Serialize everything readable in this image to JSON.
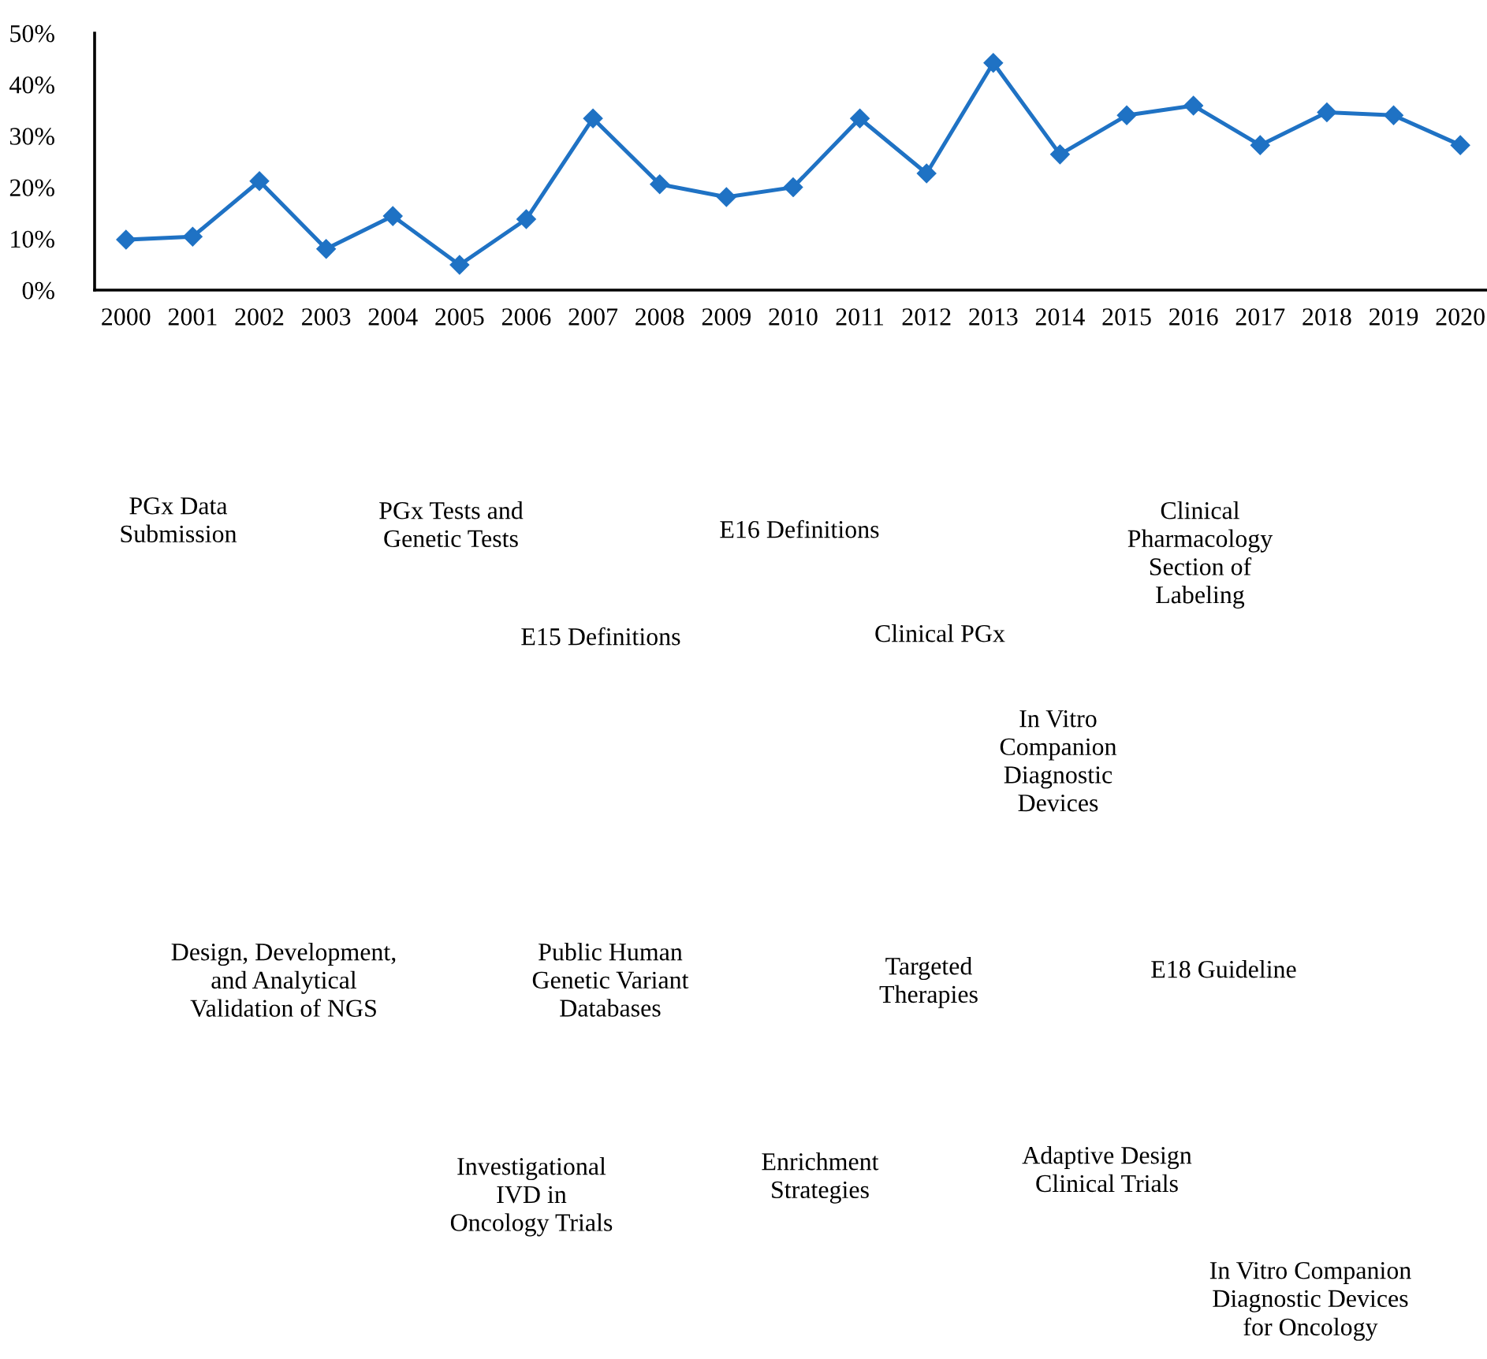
{
  "chart_data": {
    "type": "line",
    "categories": [
      "2000",
      "2001",
      "2002",
      "2003",
      "2004",
      "2005",
      "2006",
      "2007",
      "2008",
      "2009",
      "2010",
      "2011",
      "2012",
      "2013",
      "2014",
      "2015",
      "2016",
      "2017",
      "2018",
      "2019",
      "2020"
    ],
    "series": [
      {
        "color": "#1f72c4",
        "values": [
          9.8,
          10.4,
          21.2,
          8.0,
          14.4,
          4.9,
          13.8,
          33.4,
          20.6,
          18.1,
          20.0,
          33.4,
          22.7,
          44.2,
          26.4,
          34.0,
          35.9,
          28.2,
          34.6,
          34.0,
          28.2
        ]
      }
    ],
    "ylim": [
      0,
      50
    ],
    "yticks": [
      {
        "value": 0,
        "label": "0%"
      },
      {
        "value": 10,
        "label": "10%"
      },
      {
        "value": 20,
        "label": "20%"
      },
      {
        "value": 30,
        "label": "30%"
      },
      {
        "value": 40,
        "label": "40%"
      },
      {
        "value": 50,
        "label": "50%"
      }
    ],
    "marker": "diamond",
    "line_style": "solid",
    "grid": false,
    "annotations": [
      "PGx Data\nSubmission",
      "PGx Tests and\nGenetic Tests",
      "E16 Definitions",
      "Clinical\nPharmacology\nSection of\nLabeling",
      "E15 Definitions",
      "Clinical PGx",
      "In Vitro\nCompanion\nDiagnostic\nDevices",
      "Design, Development,\nand Analytical\nValidation of NGS",
      "Public Human\nGenetic Variant\nDatabases",
      "Targeted\nTherapies",
      "E18 Guideline",
      "Investigational\nIVD in\nOncology Trials",
      "Enrichment\nStrategies",
      "Adaptive Design\nClinical Trials",
      "In Vitro Companion\nDiagnostic Devices\nfor Oncology"
    ]
  }
}
